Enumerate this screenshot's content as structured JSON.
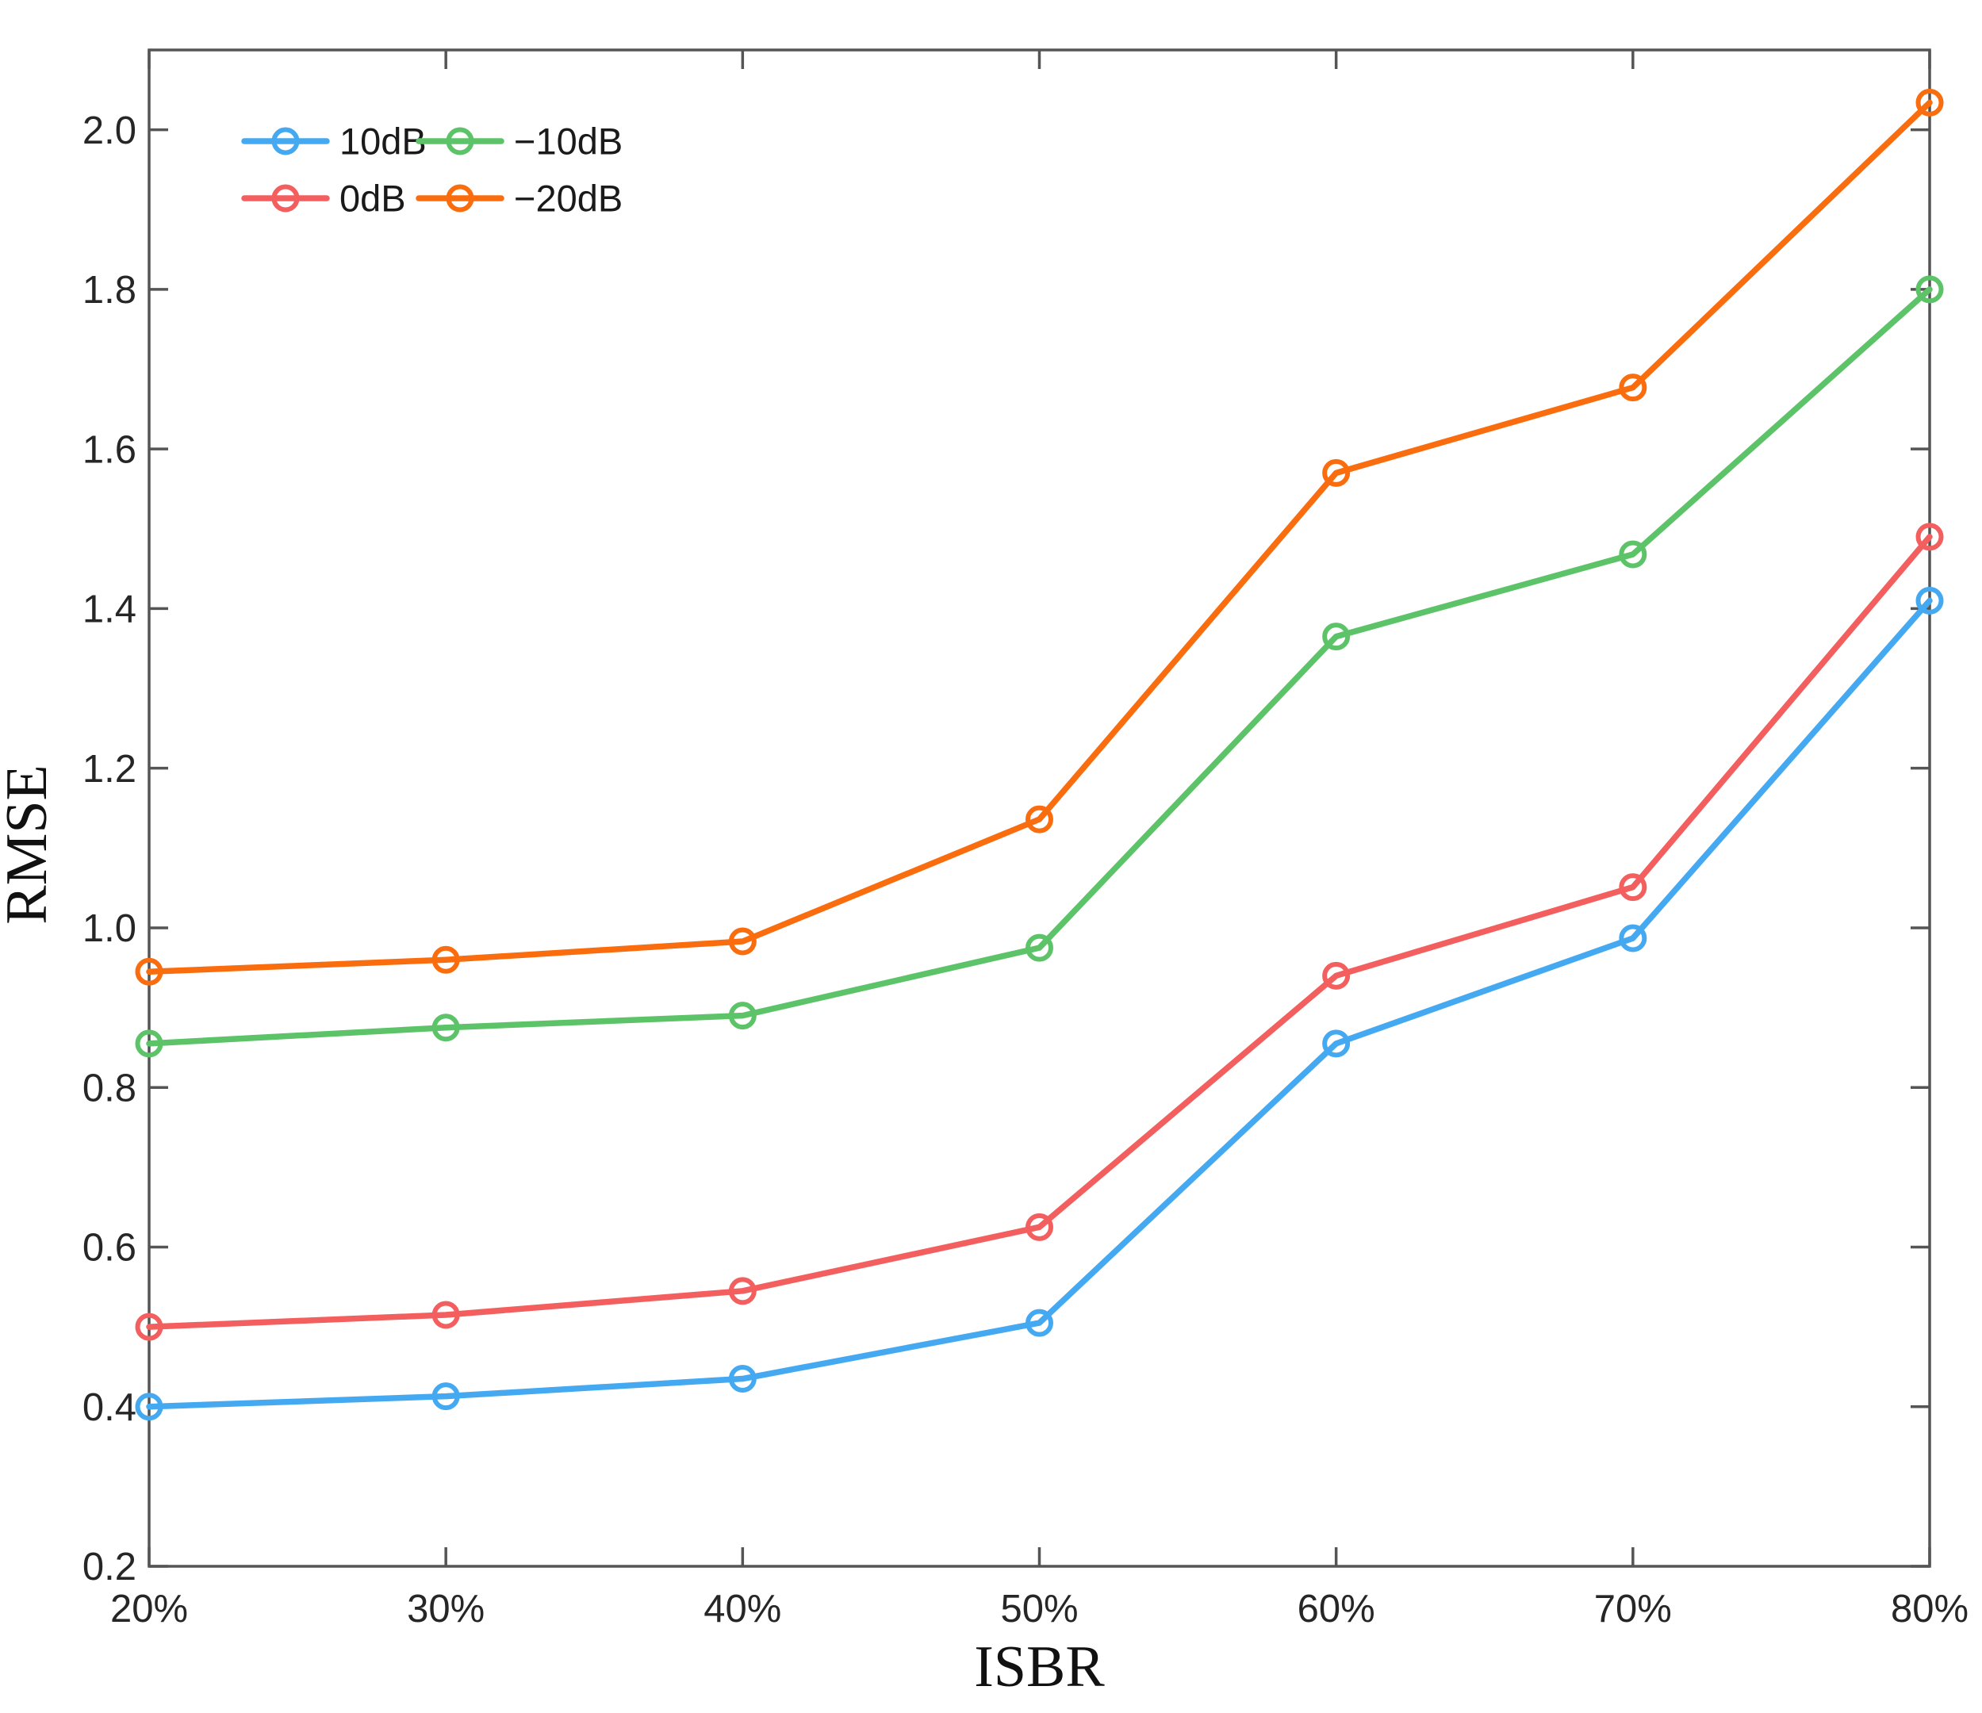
{
  "chart_data": {
    "type": "line",
    "title": "",
    "xlabel": "ISBR",
    "ylabel": "RMSE",
    "categories": [
      "20%",
      "30%",
      "40%",
      "50%",
      "60%",
      "70%",
      "80%"
    ],
    "x_values": [
      20,
      30,
      40,
      50,
      60,
      70,
      80
    ],
    "ylim": [
      0.2,
      2.1
    ],
    "y_ticks": [
      0.2,
      0.4,
      0.6,
      0.8,
      1.0,
      1.2,
      1.4,
      1.6,
      1.8,
      2.0
    ],
    "grid": false,
    "marker": "open-circle",
    "legend_position": "top-left-inside",
    "legend_grid": [
      [
        0,
        2
      ],
      [
        1,
        3
      ]
    ],
    "axis_color": "#555555",
    "tick_label_color": "#262626",
    "series": [
      {
        "name": "10dB",
        "color": "#45A9F1",
        "values": [
          0.4,
          0.413,
          0.435,
          0.505,
          0.855,
          0.987,
          1.41
        ]
      },
      {
        "name": "0dB",
        "color": "#F35F5E",
        "values": [
          0.5,
          0.515,
          0.545,
          0.625,
          0.94,
          1.051,
          1.49
        ]
      },
      {
        "name": "−10dB",
        "color": "#5CC368",
        "values": [
          0.855,
          0.875,
          0.89,
          0.975,
          1.365,
          1.468,
          1.8
        ]
      },
      {
        "name": "−20dB",
        "color": "#F96D0F",
        "values": [
          0.945,
          0.96,
          0.983,
          1.136,
          1.57,
          1.677,
          2.034
        ]
      }
    ]
  }
}
